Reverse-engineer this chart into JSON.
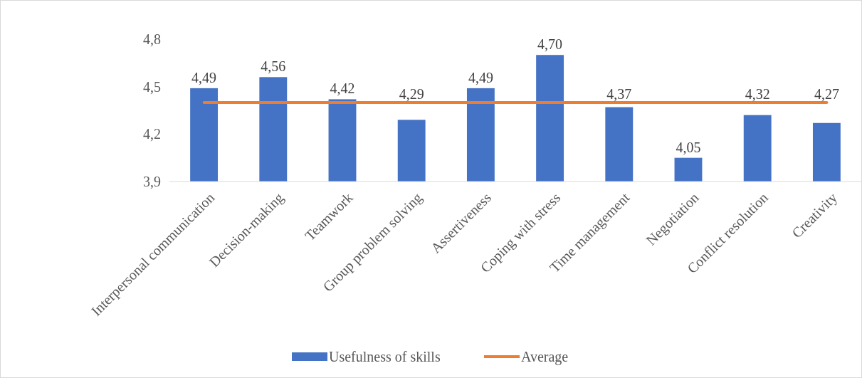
{
  "chart_data": {
    "type": "bar",
    "categories": [
      "Interpersonal communication",
      "Decision-making",
      "Teamwork",
      "Group problem solving",
      "Assertiveness",
      "Coping with stress",
      "Time management",
      "Negotiation",
      "Conflict resolution",
      "Creativity"
    ],
    "series": [
      {
        "name": "Usefulness of skills",
        "color": "#4472c4",
        "values": [
          4.49,
          4.56,
          4.42,
          4.29,
          4.49,
          4.7,
          4.37,
          4.05,
          4.32,
          4.27
        ],
        "value_labels": [
          "4,49",
          "4,56",
          "4,42",
          "4,29",
          "4,49",
          "4,70",
          "4,37",
          "4,05",
          "4,32",
          "4,27"
        ]
      },
      {
        "name": "Average",
        "type": "line",
        "color": "#ed7d31",
        "values": [
          4.4,
          4.4,
          4.4,
          4.4,
          4.4,
          4.4,
          4.4,
          4.4,
          4.4,
          4.4
        ]
      }
    ],
    "ylim": [
      3.9,
      4.8
    ],
    "yticks": [
      {
        "value": 3.9,
        "label": "3,9"
      },
      {
        "value": 4.2,
        "label": "4,2"
      },
      {
        "value": 4.5,
        "label": "4,5"
      },
      {
        "value": 4.8,
        "label": "4,8"
      }
    ],
    "grid": false,
    "legend": "bottom",
    "marker": "none"
  }
}
